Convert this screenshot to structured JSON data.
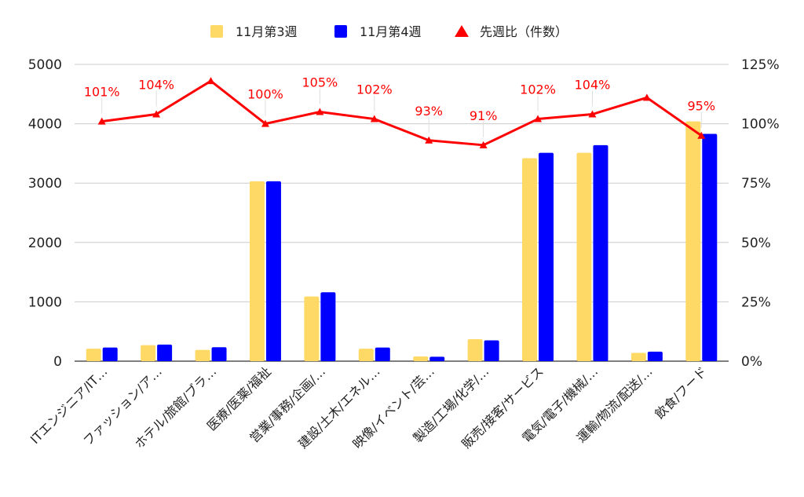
{
  "chart_data": {
    "type": "bar",
    "categories": [
      "ITエンジニア/IT…",
      "ファッション/ア…",
      "ホテル/旅館/ブラ…",
      "医療/医薬/福祉",
      "営業/事務/企画/…",
      "建設/土木/エネル…",
      "映像/イベント/芸…",
      "製造/工場/化学/…",
      "販売/接客/サービス",
      "電気/電子/機械/…",
      "運輸/物流/配送/…",
      "飲食/フード"
    ],
    "series": [
      {
        "name": "11月第3週",
        "type": "bar",
        "axis": "left",
        "color": "#FFD966",
        "values": [
          210,
          270,
          190,
          3030,
          1090,
          210,
          80,
          370,
          3420,
          3510,
          140,
          4040
        ]
      },
      {
        "name": "11月第4週",
        "type": "bar",
        "axis": "left",
        "color": "#0000FF",
        "values": [
          230,
          280,
          235,
          3030,
          1160,
          230,
          75,
          350,
          3510,
          3640,
          160,
          3830
        ]
      },
      {
        "name": "先週比（件数）",
        "type": "line",
        "axis": "right",
        "color": "#FF0000",
        "values": [
          101,
          104,
          118,
          100,
          105,
          102,
          93,
          91,
          102,
          104,
          111,
          95
        ]
      }
    ],
    "line_labels": [
      "101%",
      "104%",
      "",
      "100%",
      "105%",
      "102%",
      "93%",
      "91%",
      "102%",
      "104%",
      "",
      "95%"
    ],
    "y_left": {
      "min": 0,
      "max": 5000,
      "ticks": [
        "0",
        "1000",
        "2000",
        "3000",
        "4000",
        "5000"
      ]
    },
    "y_right": {
      "min": 0,
      "max": 125,
      "ticks": [
        "0%",
        "25%",
        "50%",
        "75%",
        "100%",
        "125%"
      ]
    },
    "legend_position": "top",
    "grid": true
  }
}
